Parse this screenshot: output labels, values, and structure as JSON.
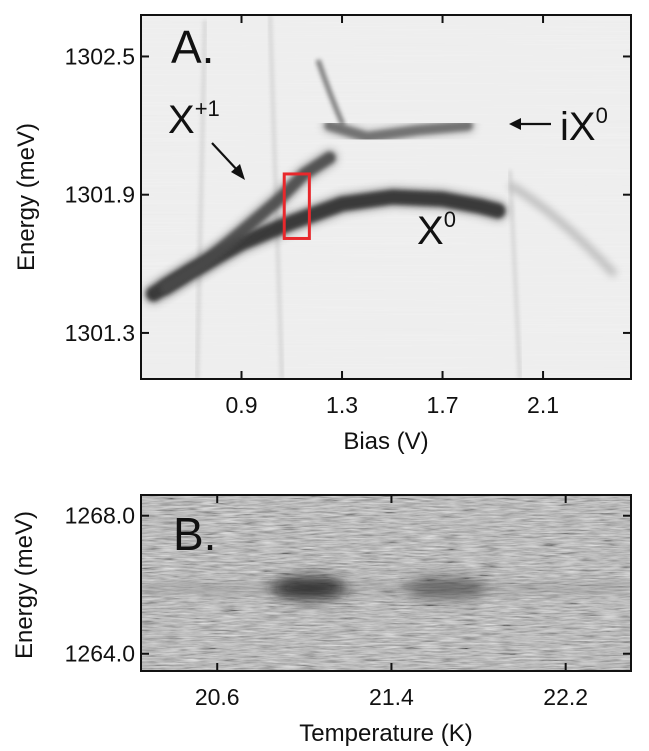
{
  "chart_data": [
    {
      "type": "heatmap",
      "panel_label": "A.",
      "xlabel": "Bias (V)",
      "ylabel": "Energy (meV)",
      "xlim": [
        0.5,
        2.45
      ],
      "ylim": [
        1301.1,
        1302.68
      ],
      "x_ticks": [
        0.9,
        1.3,
        1.7,
        2.1
      ],
      "x_tick_labels": [
        "0.9",
        "1.3",
        "1.7",
        "2.1"
      ],
      "y_ticks": [
        1301.3,
        1301.9,
        1302.5
      ],
      "y_tick_labels": [
        "1301.3",
        "1301.9",
        "1302.5"
      ],
      "colormap": "grayscale (dark = high intensity)",
      "annotations": [
        {
          "text": "X",
          "sup": "+1"
        },
        {
          "text": "iX",
          "sup": "0"
        },
        {
          "text": "X",
          "sup": "0"
        }
      ],
      "series": [
        {
          "name": "X0",
          "points": [
            [
              0.55,
              1301.47
            ],
            [
              0.7,
              1301.57
            ],
            [
              0.9,
              1301.69
            ],
            [
              1.1,
              1301.78
            ],
            [
              1.3,
              1301.86
            ],
            [
              1.5,
              1301.89
            ],
            [
              1.7,
              1301.88
            ],
            [
              1.85,
              1301.85
            ],
            [
              1.92,
              1301.83
            ]
          ]
        },
        {
          "name": "X+1",
          "points": [
            [
              0.6,
              1301.5
            ],
            [
              0.75,
              1301.6
            ],
            [
              0.9,
              1301.74
            ],
            [
              1.05,
              1301.88
            ],
            [
              1.15,
              1301.99
            ],
            [
              1.25,
              1302.06
            ]
          ]
        },
        {
          "name": "iX0",
          "points": [
            [
              1.25,
              1302.2
            ],
            [
              1.4,
              1302.15
            ],
            [
              1.6,
              1302.18
            ],
            [
              1.8,
              1302.2
            ]
          ]
        }
      ],
      "highlight_box": {
        "x": [
          1.07,
          1.17
        ],
        "y": [
          1301.71,
          1301.99
        ],
        "color": "#e8282c"
      }
    },
    {
      "type": "heatmap",
      "panel_label": "B.",
      "xlabel": "Temperature (K)",
      "ylabel": "Energy (meV)",
      "xlim": [
        20.25,
        22.5
      ],
      "ylim": [
        1263.5,
        1268.6
      ],
      "x_ticks": [
        20.6,
        21.4,
        22.2
      ],
      "x_tick_labels": [
        "20.6",
        "21.4",
        "22.2"
      ],
      "y_ticks": [
        1264.0,
        1268.0
      ],
      "y_tick_labels": [
        "1264.0",
        "1268.0"
      ],
      "colormap": "grayscale (dark = high intensity)",
      "features": [
        {
          "x": 21.02,
          "y": 1265.9
        },
        {
          "x": 21.65,
          "y": 1265.9
        }
      ]
    }
  ]
}
